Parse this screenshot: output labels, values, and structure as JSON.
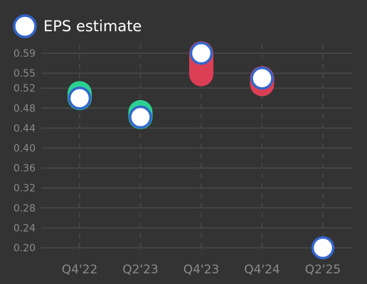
{
  "chart_data": {
    "type": "scatter",
    "title": "",
    "xlabel": "",
    "ylabel": "",
    "categories": [
      "Q4'22",
      "Q2'23",
      "Q4'23",
      "Q4'24",
      "Q2'25"
    ],
    "y_ticks": [
      "0.20",
      "0.24",
      "0.28",
      "0.32",
      "0.36",
      "0.40",
      "0.44",
      "0.48",
      "0.52",
      "0.55",
      "0.59"
    ],
    "ylim": [
      0.195,
      0.605
    ],
    "grid": true,
    "legend_position": "top-left",
    "series": [
      {
        "name": "EPS estimate",
        "values": [
          0.5,
          0.462,
          0.59,
          0.54,
          0.2
        ],
        "marker_fill": "#ffffff",
        "marker_edge": "#3366cc"
      }
    ],
    "actual_values": [
      0.51,
      0.472,
      0.548,
      0.528,
      null
    ],
    "colors": {
      "beat": "#2bd191",
      "miss": "#dc3f55",
      "background": "#333333",
      "grid": "#4a4a4a"
    }
  }
}
